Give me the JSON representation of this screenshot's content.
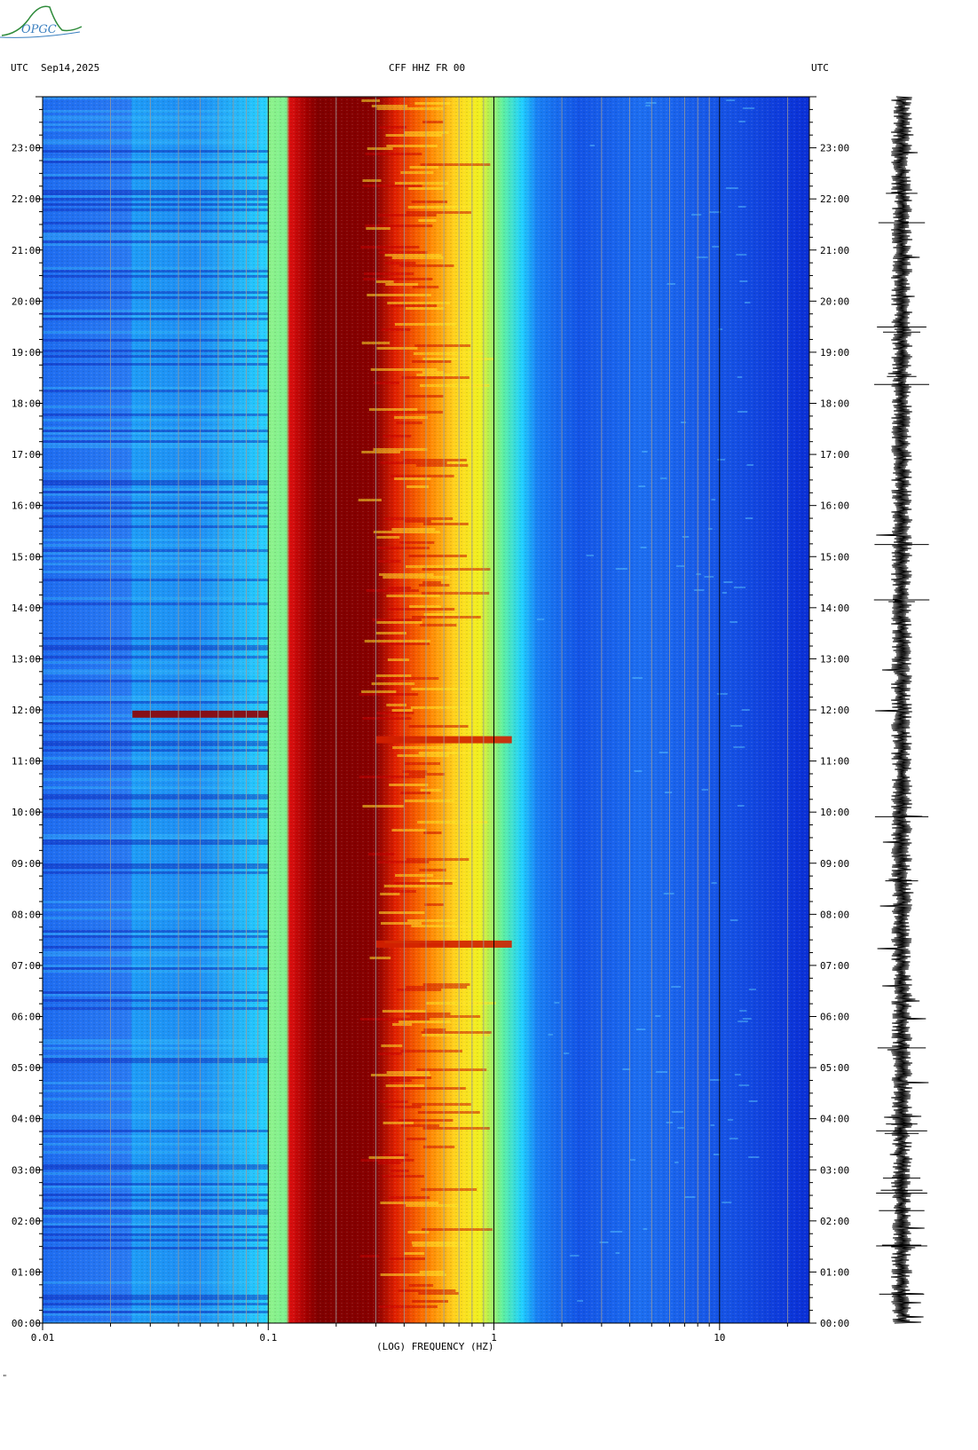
{
  "header": {
    "utc_left": "UTC",
    "date": "Sep14,2025",
    "station": "CFF HHZ FR 00",
    "utc_right": "UTC"
  },
  "logo": {
    "text": "OPGC"
  },
  "footer_mark": "\"",
  "colors": {
    "deep_blue": "#0a2fd6",
    "blue": "#1e6cf0",
    "cyan": "#20d0ff",
    "yellow": "#ffe820",
    "orange": "#ff6a00",
    "red": "#e00000",
    "dark_red": "#800000"
  },
  "chart_data": {
    "type": "heatmap",
    "xlabel": "(LOG) FREQUENCY (HZ)",
    "x_scale": "log",
    "xlim": [
      0.01,
      25
    ],
    "x_ticks": [
      0.01,
      0.1,
      1,
      10
    ],
    "x_tick_labels": [
      "0.01",
      "0.1",
      "1",
      "10"
    ],
    "ylim_hours": [
      0,
      24
    ],
    "y_ticks": [
      "00:00",
      "01:00",
      "02:00",
      "03:00",
      "04:00",
      "05:00",
      "06:00",
      "07:00",
      "08:00",
      "09:00",
      "10:00",
      "11:00",
      "12:00",
      "13:00",
      "14:00",
      "15:00",
      "16:00",
      "17:00",
      "18:00",
      "19:00",
      "20:00",
      "21:00",
      "22:00",
      "23:00"
    ],
    "energy_bands": [
      {
        "from_hz": 0.01,
        "to_hz": 0.1,
        "level": "low"
      },
      {
        "from_hz": 0.1,
        "to_hz": 0.13,
        "level": "medium"
      },
      {
        "from_hz": 0.13,
        "to_hz": 0.4,
        "level": "very high"
      },
      {
        "from_hz": 0.4,
        "to_hz": 0.8,
        "level": "high"
      },
      {
        "from_hz": 0.8,
        "to_hz": 1.0,
        "level": "medium"
      },
      {
        "from_hz": 1.0,
        "to_hz": 25,
        "level": "low"
      }
    ],
    "events": [
      {
        "time": "11:55",
        "from_hz": 0.025,
        "to_hz": 0.1,
        "level": "very high"
      },
      {
        "time": "11:25",
        "from_hz": 0.3,
        "to_hz": 1.2,
        "level": "high"
      },
      {
        "time": "07:25",
        "from_hz": 0.3,
        "to_hz": 1.2,
        "level": "high"
      }
    ]
  }
}
